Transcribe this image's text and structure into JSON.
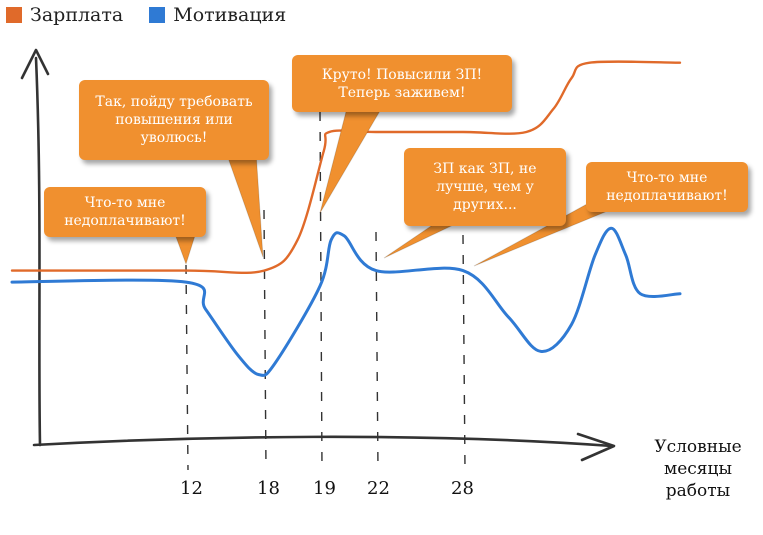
{
  "legend": [
    {
      "name": "Зарплата",
      "color": "#e06a2a"
    },
    {
      "name": "Мотивация",
      "color": "#2f7ad4"
    }
  ],
  "callouts": [
    {
      "text": "Что-то мне\nнедоплачивают!",
      "month": 12
    },
    {
      "text": "Так, пойду требовать\nповышения или\nуволюсь!",
      "month": 18
    },
    {
      "text": "Круто! Повысили ЗП!\nТеперь заживем!",
      "month": 19
    },
    {
      "text": "ЗП как ЗП, не\nлучше, чем у\nдругих...",
      "month": 22
    },
    {
      "text": "Что-то мне\nнедоплачивают!",
      "month": 28
    }
  ],
  "chart_data": {
    "type": "line",
    "xlabel": "Условные\nмесяцы\nработы",
    "ylabel": "",
    "x_ticks": [
      12,
      18,
      19,
      22,
      28
    ],
    "xlim": [
      0,
      40
    ],
    "ylim": [
      0,
      100
    ],
    "grid": false,
    "legend_position": "top-left",
    "series": [
      {
        "name": "Зарплата",
        "color": "#e06a2a",
        "points": [
          [
            0,
            44
          ],
          [
            12,
            44
          ],
          [
            18,
            44
          ],
          [
            18.6,
            52
          ],
          [
            19.2,
            75
          ],
          [
            19.5,
            80
          ],
          [
            22,
            80
          ],
          [
            28,
            80
          ],
          [
            31.5,
            80
          ],
          [
            33,
            86
          ],
          [
            34,
            94
          ],
          [
            35,
            98
          ],
          [
            40,
            98
          ]
        ]
      },
      {
        "name": "Мотивация",
        "color": "#2f7ad4",
        "points": [
          [
            0,
            41
          ],
          [
            12,
            41
          ],
          [
            13.5,
            34
          ],
          [
            16,
            22
          ],
          [
            17.6,
            17
          ],
          [
            18.2,
            20
          ],
          [
            19,
            40
          ],
          [
            19.6,
            52
          ],
          [
            20.3,
            53
          ],
          [
            22,
            44
          ],
          [
            28,
            44
          ],
          [
            30.5,
            32
          ],
          [
            32.3,
            23
          ],
          [
            34,
            30
          ],
          [
            35.3,
            48
          ],
          [
            36.2,
            55
          ],
          [
            37,
            48
          ],
          [
            37.8,
            38
          ],
          [
            40,
            38
          ]
        ]
      }
    ]
  }
}
